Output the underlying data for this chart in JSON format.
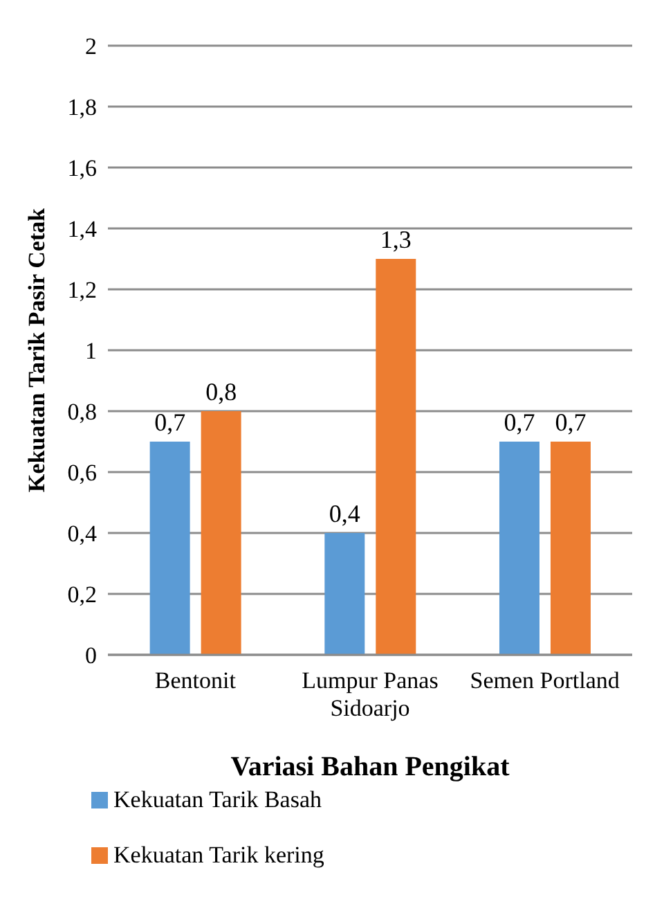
{
  "chart_data": {
    "type": "bar",
    "xlabel": "Variasi Bahan Pengikat",
    "ylabel": "Kekuatan Tarik Pasir Cetak",
    "categories": [
      "Bentonit",
      "Lumpur Panas Sidoarjo",
      "Semen Portland"
    ],
    "series": [
      {
        "name": "Kekuatan Tarik Basah",
        "color": "#5b9bd5",
        "values": [
          0.7,
          0.4,
          0.7
        ],
        "value_labels": [
          "0,7",
          "0,4",
          "0,7"
        ]
      },
      {
        "name": "Kekuatan Tarik kering",
        "color": "#ed7d31",
        "values": [
          0.8,
          1.3,
          0.7
        ],
        "value_labels": [
          "0,8",
          "1,3",
          "0,7"
        ]
      }
    ],
    "ylim": [
      0,
      2
    ],
    "yticks": [
      0,
      {
        "value": 0.2,
        "label": "0,2"
      },
      {
        "value": 0.4,
        "label": "0,4"
      },
      {
        "value": 0.6,
        "label": "0,6"
      },
      {
        "value": 0.8,
        "label": "0,8"
      },
      1,
      {
        "value": 1.2,
        "label": "1,2"
      },
      {
        "value": 1.4,
        "label": "1,4"
      },
      {
        "value": 1.6,
        "label": "1,6"
      },
      {
        "value": 1.8,
        "label": "1,8"
      },
      2
    ],
    "grid": "y",
    "legend": "bottom left"
  }
}
